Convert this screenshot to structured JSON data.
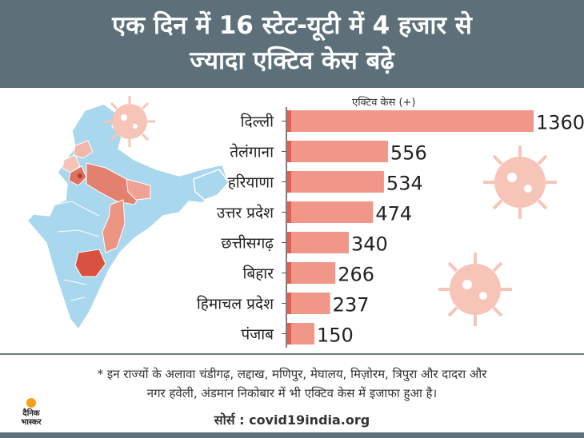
{
  "header": {
    "line1": "एक दिन में 16 स्टेट-यूटी में 4 हजार से",
    "line2": "ज्यादा एक्टिव केस बढ़े"
  },
  "chart_data": {
    "type": "bar",
    "orientation": "horizontal",
    "title": "एक्टिव केस (+)",
    "categories": [
      "दिल्ली",
      "तेलंगाना",
      "हरियाणा",
      "उत्तर प्रदेश",
      "छत्तीसगढ़",
      "बिहार",
      "हिमाचल प्रदेश",
      "पंजाब"
    ],
    "values": [
      1360,
      556,
      534,
      474,
      340,
      266,
      237,
      150
    ],
    "xlim": [
      0,
      1360
    ],
    "grid": false,
    "colors": {
      "bar": "#f0978a",
      "bar_edge": "#e3604f",
      "axis": "#555555"
    }
  },
  "footnote": {
    "line1": "* इन राज्यों के अलावा चंडीगढ़, लद्दाख, मणिपुर, मेघालय, मिज़ोरम, त्रिपुरा और दादरा और",
    "line2": "नगर हवेली, अंडमान निकोबार में भी एक्टिव केस में इजाफा हुआ है।"
  },
  "source": "सोर्स : covid19india.org",
  "logo": {
    "line1": "दैनिक",
    "line2": "भास्कर"
  },
  "colors": {
    "header_bg": "#5d7079",
    "map_base": "#a9d7ee",
    "map_hot": "#e0705e",
    "virus": "#f7c4b8"
  }
}
